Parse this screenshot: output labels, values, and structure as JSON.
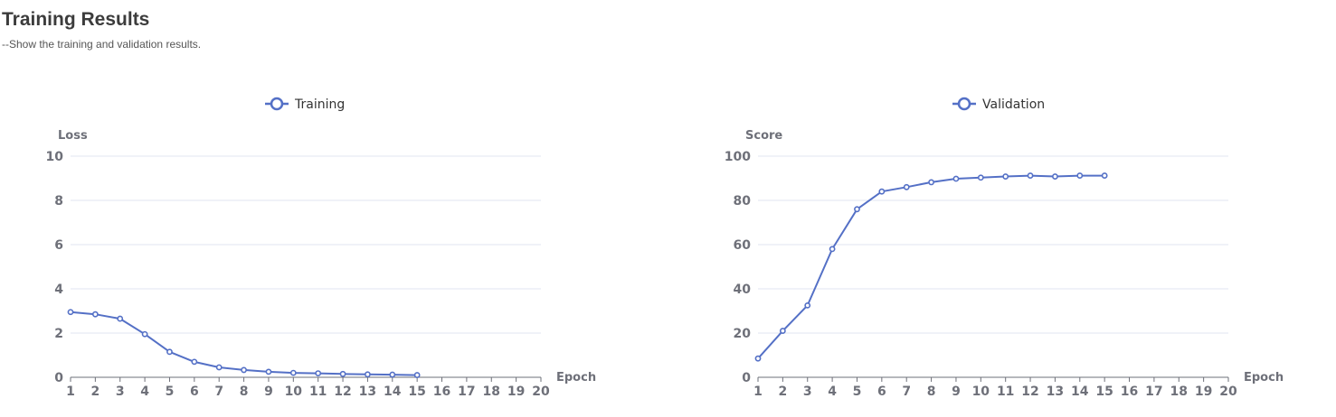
{
  "header": {
    "title": "Training Results",
    "subtitle": "--Show the training and validation results."
  },
  "colors": {
    "series": "#5470c6",
    "grid": "#e0e6f1",
    "axis": "#6e7079"
  },
  "chart_data": [
    {
      "type": "line",
      "legend": "Training",
      "legend_position": "top-center",
      "xlabel": "Epoch",
      "ylabel": "Loss",
      "x": [
        1,
        2,
        3,
        4,
        5,
        6,
        7,
        8,
        9,
        10,
        11,
        12,
        13,
        14,
        15,
        16,
        17,
        18,
        19,
        20
      ],
      "ylim": [
        0,
        10
      ],
      "yticks": [
        0,
        2,
        4,
        6,
        8,
        10
      ],
      "grid": true,
      "series": [
        {
          "name": "Training",
          "x": [
            1,
            2,
            3,
            4,
            5,
            6,
            7,
            8,
            9,
            10,
            11,
            12,
            13,
            14,
            15
          ],
          "values": [
            2.95,
            2.85,
            2.65,
            1.95,
            1.15,
            0.7,
            0.45,
            0.33,
            0.25,
            0.2,
            0.18,
            0.15,
            0.13,
            0.12,
            0.1
          ]
        }
      ]
    },
    {
      "type": "line",
      "legend": "Validation",
      "legend_position": "top-center",
      "xlabel": "Epoch",
      "ylabel": "Score",
      "x": [
        1,
        2,
        3,
        4,
        5,
        6,
        7,
        8,
        9,
        10,
        11,
        12,
        13,
        14,
        15,
        16,
        17,
        18,
        19,
        20
      ],
      "ylim": [
        0,
        100
      ],
      "yticks": [
        0,
        20,
        40,
        60,
        80,
        100
      ],
      "grid": true,
      "series": [
        {
          "name": "Validation",
          "x": [
            1,
            2,
            3,
            4,
            5,
            6,
            7,
            8,
            9,
            10,
            11,
            12,
            13,
            14,
            15
          ],
          "values": [
            8.5,
            21,
            32.5,
            58,
            76,
            84,
            86,
            88.2,
            89.8,
            90.3,
            90.8,
            91.2,
            90.8,
            91.2,
            91.2
          ]
        }
      ]
    }
  ]
}
